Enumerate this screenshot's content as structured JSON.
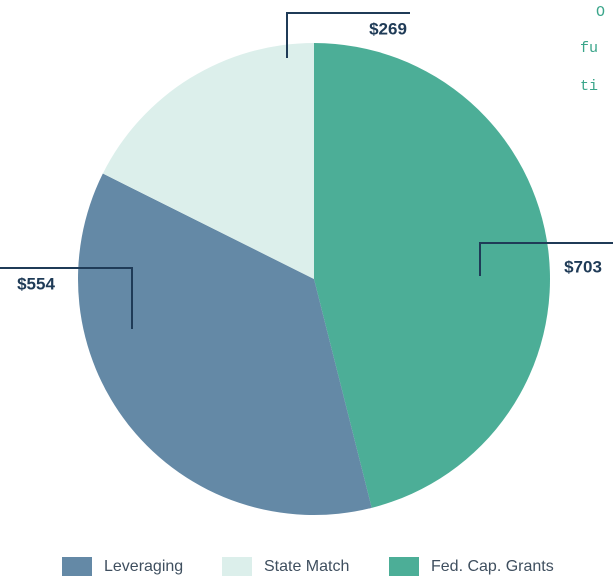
{
  "chart_data": {
    "type": "pie",
    "categories": [
      "Leveraging",
      "State Match",
      "Fed. Cap. Grants"
    ],
    "values": [
      554,
      269,
      703
    ],
    "value_labels": [
      "$554",
      "$269",
      "$703"
    ],
    "colors": [
      "#6489a6",
      "#dcefeb",
      "#4cae97"
    ],
    "legend": "bottom"
  },
  "side_text": [
    "O",
    "fu",
    "ti"
  ]
}
